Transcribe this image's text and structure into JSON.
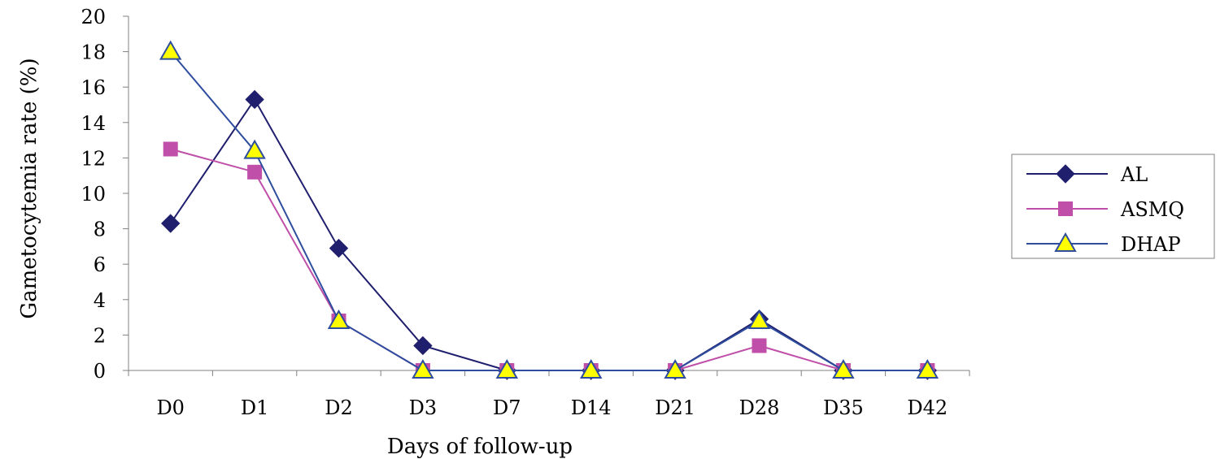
{
  "chart_data": {
    "type": "line",
    "categories": [
      "D0",
      "D1",
      "D2",
      "D3",
      "D7",
      "D14",
      "D21",
      "D28",
      "D35",
      "D42"
    ],
    "xlabel": "Days of follow-up",
    "ylabel": "Gametocytemia rate (%)",
    "ylim": [
      0,
      20
    ],
    "yticks": [
      0,
      2,
      4,
      6,
      8,
      10,
      12,
      14,
      16,
      18,
      20
    ],
    "grid": false,
    "legend_position": "right",
    "series": [
      {
        "name": "AL",
        "color": "#1f1f6e",
        "marker": "diamond",
        "values": [
          8.3,
          15.3,
          6.9,
          1.4,
          0,
          0,
          0,
          2.9,
          0,
          0
        ]
      },
      {
        "name": "ASMQ",
        "color": "#bf4fa8",
        "marker": "square",
        "values": [
          12.5,
          11.2,
          2.8,
          0,
          0,
          0,
          0,
          1.4,
          0,
          0
        ]
      },
      {
        "name": "DHAP",
        "color": "#2e4d9e",
        "marker": "triangle",
        "marker_fill": "#ffff00",
        "values": [
          18.0,
          12.4,
          2.8,
          0,
          0,
          0,
          0,
          2.8,
          0,
          0
        ]
      }
    ]
  }
}
